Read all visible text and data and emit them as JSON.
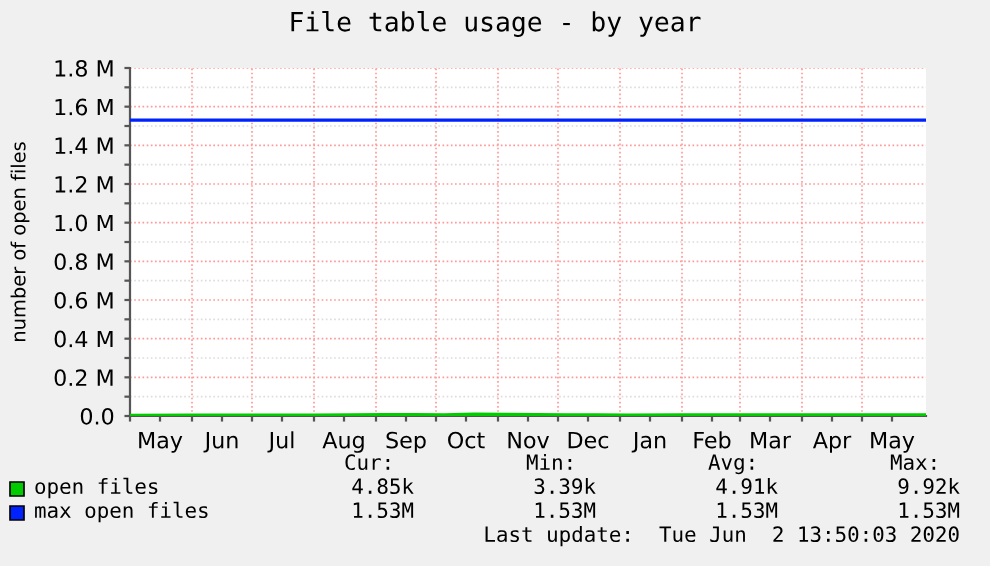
{
  "chart_data": {
    "type": "line",
    "title": "File table usage - by year",
    "ylabel": "number of open files",
    "x": [
      "2019-05-01",
      "2019-06-01",
      "2019-07-01",
      "2019-08-01",
      "2019-08-20",
      "2019-09-05",
      "2019-09-20",
      "2019-10-05",
      "2019-10-20",
      "2019-11-05",
      "2019-11-20",
      "2019-12-05",
      "2019-12-20",
      "2020-01-05",
      "2020-02-01",
      "2020-03-01",
      "2020-04-01",
      "2020-05-01",
      "2020-06-02"
    ],
    "series": [
      {
        "name": "open files",
        "color": "#00cc00",
        "values": [
          3000,
          4000,
          4000,
          4000,
          5000,
          7000,
          7000,
          6000,
          10000,
          8000,
          7000,
          6000,
          6000,
          4000,
          5000,
          5000,
          5000,
          5000,
          5000
        ]
      },
      {
        "name": "max open files",
        "color": "#0022ff",
        "values": [
          1530000,
          1530000,
          1530000,
          1530000,
          1530000,
          1530000,
          1530000,
          1530000,
          1530000,
          1530000,
          1530000,
          1530000,
          1530000,
          1530000,
          1530000,
          1530000,
          1530000,
          1530000,
          1530000
        ]
      }
    ],
    "xlim": [
      "2019-05-01",
      "2020-06-02"
    ],
    "xticks": [
      {
        "value": "2019-05-01",
        "label": null
      },
      {
        "value": "2019-05-16",
        "label": "May"
      },
      {
        "value": "2019-06-01",
        "label": null
      },
      {
        "value": "2019-06-16",
        "label": "Jun"
      },
      {
        "value": "2019-07-01",
        "label": null
      },
      {
        "value": "2019-07-16",
        "label": "Jul"
      },
      {
        "value": "2019-08-01",
        "label": null
      },
      {
        "value": "2019-08-16",
        "label": "Aug"
      },
      {
        "value": "2019-09-01",
        "label": null
      },
      {
        "value": "2019-09-16",
        "label": "Sep"
      },
      {
        "value": "2019-10-01",
        "label": null
      },
      {
        "value": "2019-10-16",
        "label": "Oct"
      },
      {
        "value": "2019-11-01",
        "label": null
      },
      {
        "value": "2019-11-16",
        "label": "Nov"
      },
      {
        "value": "2019-12-01",
        "label": null
      },
      {
        "value": "2019-12-16",
        "label": "Dec"
      },
      {
        "value": "2020-01-01",
        "label": null
      },
      {
        "value": "2020-01-16",
        "label": "Jan"
      },
      {
        "value": "2020-02-01",
        "label": null
      },
      {
        "value": "2020-02-16",
        "label": "Feb"
      },
      {
        "value": "2020-03-01",
        "label": null
      },
      {
        "value": "2020-03-16",
        "label": "Mar"
      },
      {
        "value": "2020-04-01",
        "label": null
      },
      {
        "value": "2020-04-16",
        "label": "Apr"
      },
      {
        "value": "2020-05-01",
        "label": null
      },
      {
        "value": "2020-05-16",
        "label": "May"
      }
    ],
    "ylim": [
      0,
      1800000
    ],
    "yticks": [
      {
        "value": 0,
        "label": "0.0"
      },
      {
        "value": 100000,
        "label": null
      },
      {
        "value": 200000,
        "label": "0.2 M"
      },
      {
        "value": 300000,
        "label": null
      },
      {
        "value": 400000,
        "label": "0.4 M"
      },
      {
        "value": 500000,
        "label": null
      },
      {
        "value": 600000,
        "label": "0.6 M"
      },
      {
        "value": 700000,
        "label": null
      },
      {
        "value": 800000,
        "label": "0.8 M"
      },
      {
        "value": 900000,
        "label": null
      },
      {
        "value": 1000000,
        "label": "1.0 M"
      },
      {
        "value": 1100000,
        "label": null
      },
      {
        "value": 1200000,
        "label": "1.2 M"
      },
      {
        "value": 1300000,
        "label": null
      },
      {
        "value": 1400000,
        "label": "1.4 M"
      },
      {
        "value": 1500000,
        "label": null
      },
      {
        "value": 1600000,
        "label": "1.6 M"
      },
      {
        "value": 1700000,
        "label": null
      },
      {
        "value": 1800000,
        "label": "1.8 M"
      }
    ],
    "grid": true,
    "legend": "bottom",
    "annotations": [
      "Cur:",
      "Min:",
      "Avg:",
      "Max:",
      "4.85k",
      "3.39k",
      "4.91k",
      "9.92k",
      "1.53M",
      "1.53M",
      "1.53M",
      "1.53M",
      "Last update:  Tue Jun  2 13:50:03 2020"
    ]
  }
}
